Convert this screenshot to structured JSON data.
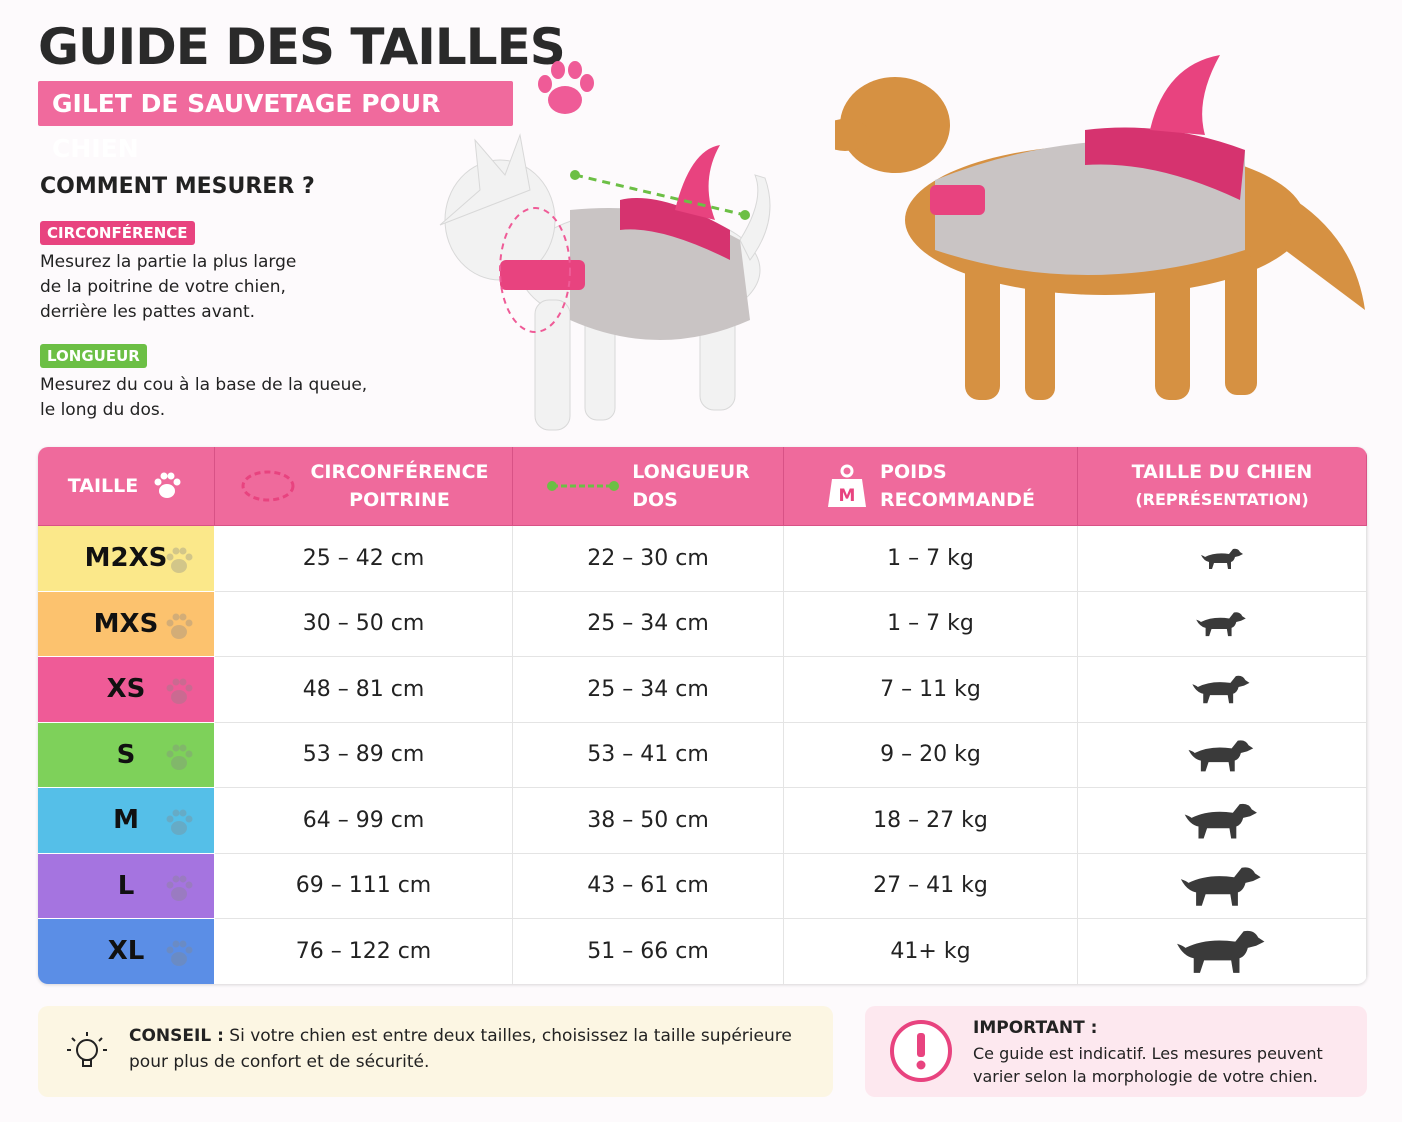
{
  "header": {
    "title": "GUIDE DES TAILLES",
    "subtitle": "GILET DE SAUVETAGE POUR CHIEN"
  },
  "measure": {
    "title": "COMMENT MESURER ?",
    "items": [
      {
        "label": "CIRCONFÉRENCE",
        "lines": [
          "Mesurez la partie la plus large",
          "de la poitrine de votre chien,",
          "derrière les pattes avant."
        ]
      },
      {
        "label": "LONGUEUR",
        "lines": [
          "Mesurez du cou à la base de la queue,",
          "le long du dos."
        ]
      }
    ]
  },
  "table": {
    "headers": [
      {
        "lines": [
          "TAILLE"
        ]
      },
      {
        "lines": [
          "CIRCONFÉRENCE",
          "POITRINE"
        ]
      },
      {
        "lines": [
          "LONGUEUR",
          "DOS"
        ]
      },
      {
        "lines": [
          "POIDS",
          "RECOMMANDÉ"
        ],
        "icon_label": "M"
      },
      {
        "lines": [
          "TAILLE DU CHIEN",
          "(REPRÉSENTATION)"
        ]
      }
    ],
    "rows": [
      [
        "M2XS",
        "25 – 42 cm",
        "22 – 30 cm",
        "1 – 7 kg"
      ],
      [
        "MXS",
        "30 – 50 cm",
        "25 – 34 cm",
        "1 – 7 kg"
      ],
      [
        "XS",
        "48 – 81 cm",
        "25 – 34 cm",
        "7 – 11 kg"
      ],
      [
        "S",
        "53 – 89 cm",
        "53 – 41 cm",
        "9 – 20 kg"
      ],
      [
        "M",
        "64 – 99 cm",
        "38 – 50 cm",
        "18 – 27 kg"
      ],
      [
        "L",
        "69 – 111 cm",
        "43 – 61 cm",
        "27 – 41 kg"
      ],
      [
        "XL",
        "76 – 122 cm",
        "51 – 66 cm",
        "41+ kg"
      ]
    ]
  },
  "tip": {
    "label": "CONSEIL :",
    "lines": [
      "Si votre chien est entre deux tailles, choisissez la taille supérieure",
      "pour plus de confort et de sécurité."
    ]
  },
  "important": {
    "title": "IMPORTANT :",
    "lines": [
      "Ce guide est indicatif. Les mesures peuvent",
      "varier selon la morphologie de votre chien."
    ]
  }
}
